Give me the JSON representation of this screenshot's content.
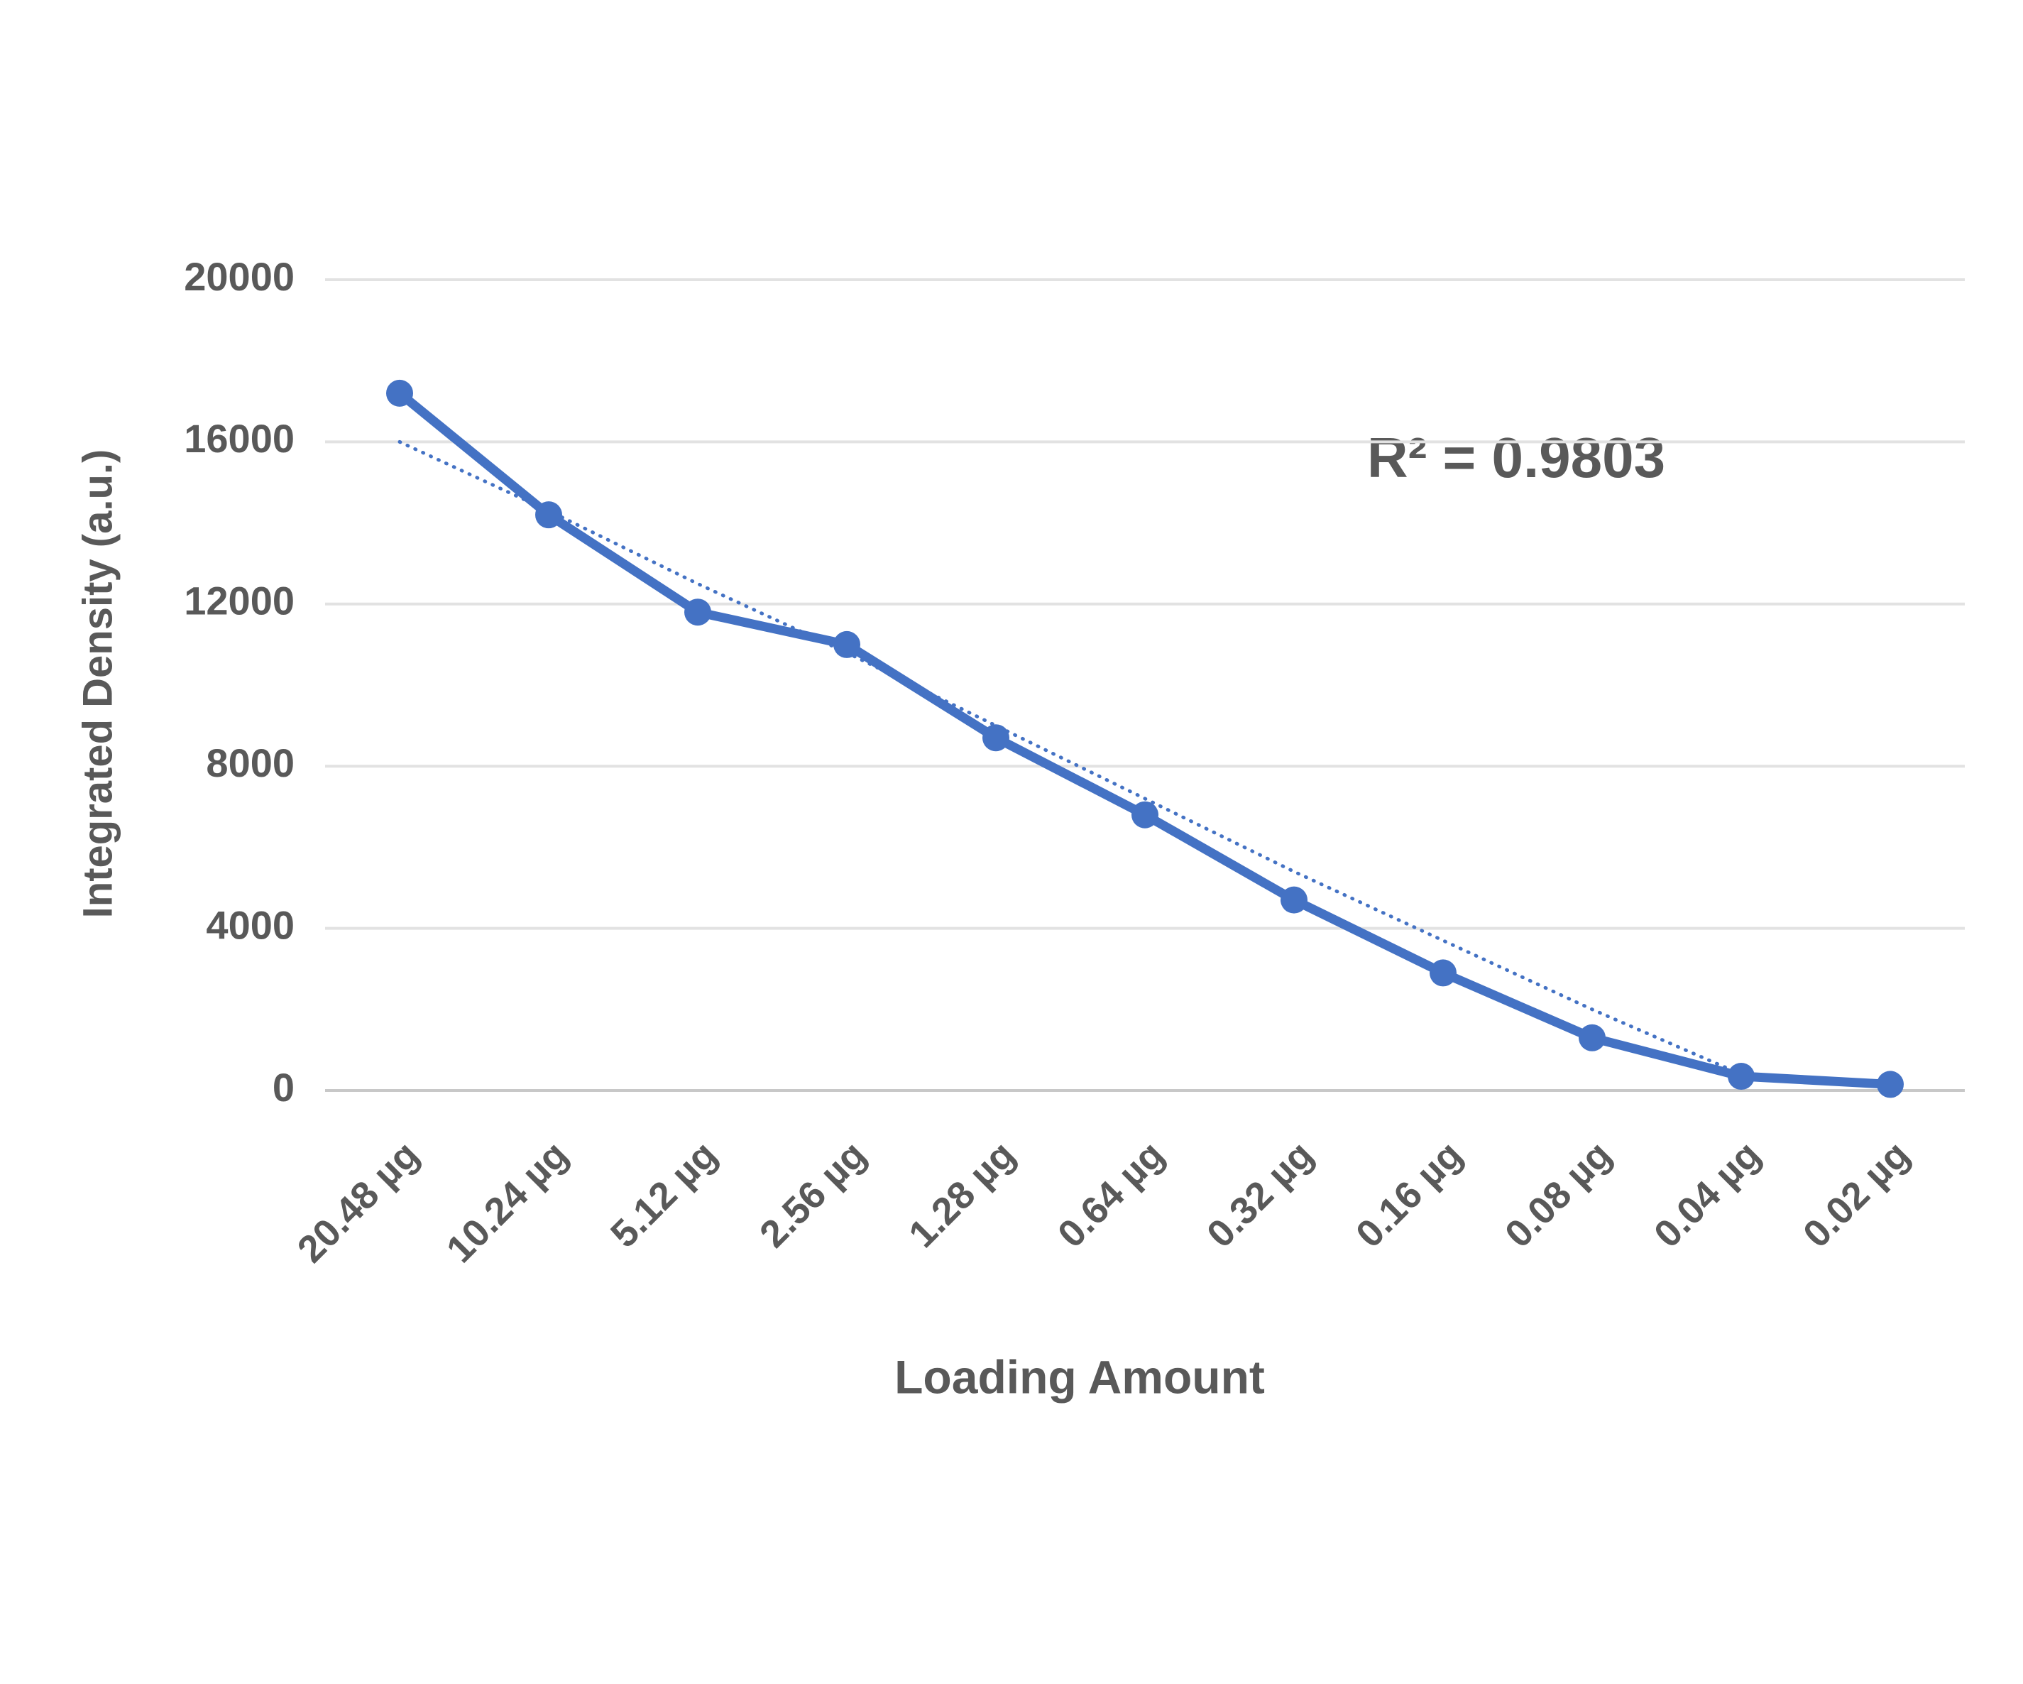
{
  "chart_data": {
    "type": "line",
    "x_label": "Loading Amount",
    "y_label": "Integrated Density (a.u.)",
    "annotation": "R² = 0.9803",
    "categories": [
      "20.48 µg",
      "10.24 µg",
      "5.12 µg",
      "2.56 µg",
      "1.28 µg",
      "0.64 µg",
      "0.32 µg",
      "0.16 µg",
      "0.08 µg",
      "0.04 µg",
      "0.02 µg"
    ],
    "values": [
      17200,
      14200,
      11800,
      11000,
      8700,
      6800,
      4700,
      2900,
      1300,
      350,
      150
    ],
    "color": "#4472c4",
    "trendline": {
      "values": [
        16000,
        14300,
        12500,
        10800,
        9000,
        7200,
        5400,
        3700,
        2000,
        400,
        null
      ],
      "color": "#4472c4"
    },
    "ylim": [
      0,
      20000
    ],
    "yticks": [
      0,
      4000,
      8000,
      12000,
      16000,
      20000
    ],
    "grid": true
  }
}
